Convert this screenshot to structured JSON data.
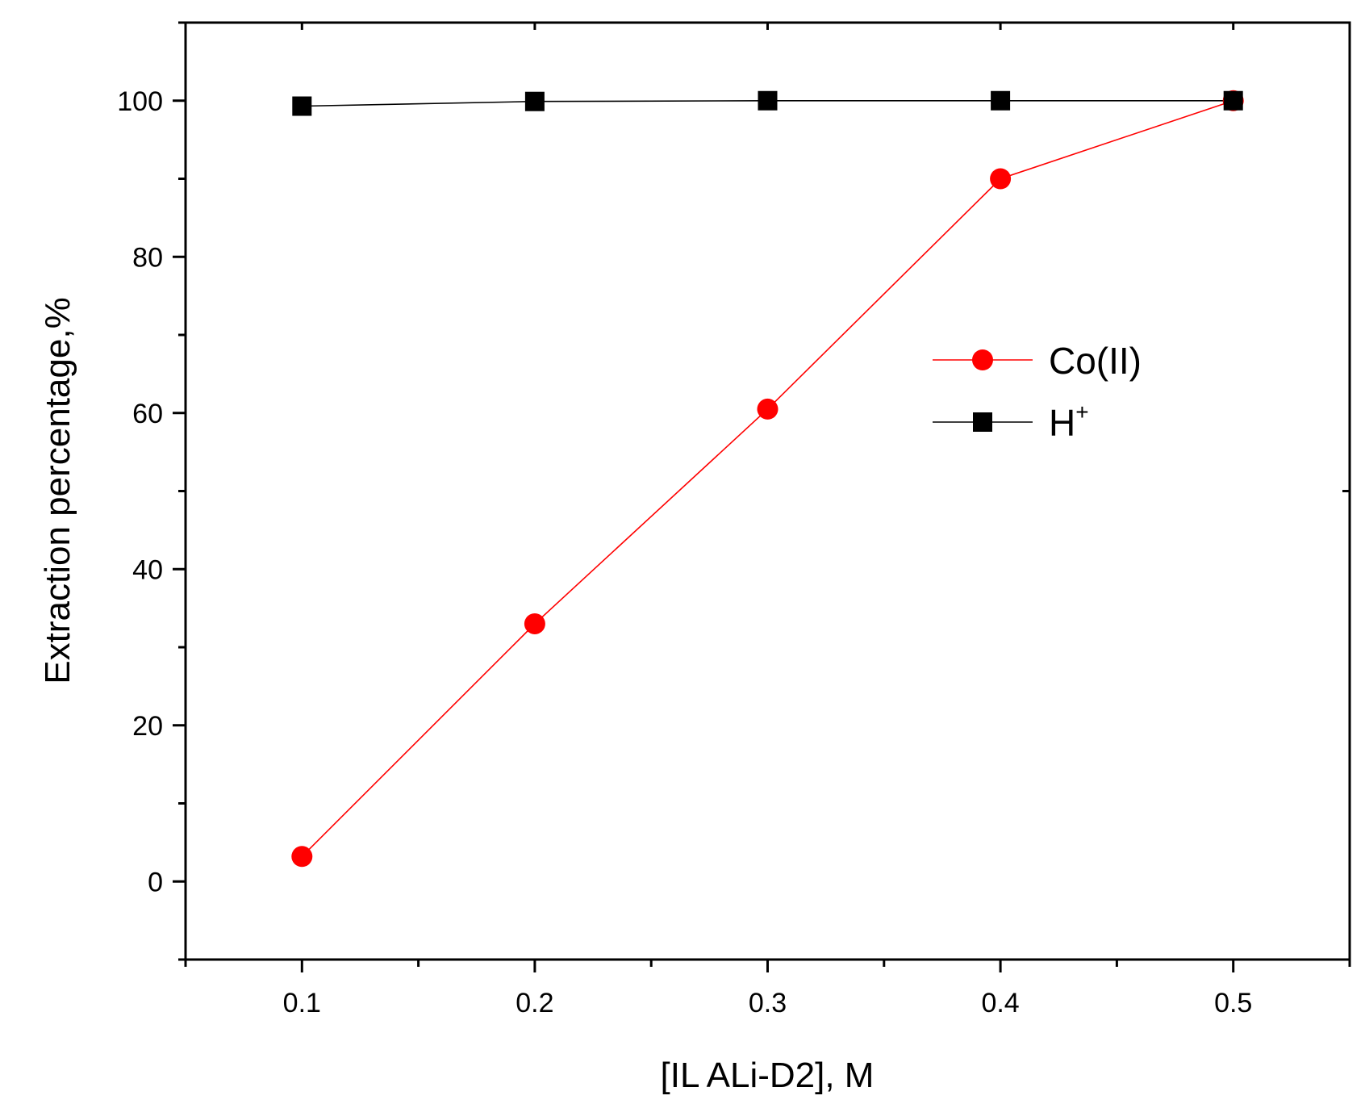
{
  "chart_data": {
    "type": "line",
    "title": "",
    "xlabel": "[IL ALi-D2], M",
    "ylabel": "Extraction percentage,%",
    "xlim": [
      0.05,
      0.55
    ],
    "ylim": [
      -10,
      110
    ],
    "x_ticks": [
      0.1,
      0.2,
      0.3,
      0.4,
      0.5
    ],
    "x_tick_labels": [
      "0.1",
      "0.2",
      "0.3",
      "0.4",
      "0.5"
    ],
    "y_ticks": [
      0,
      20,
      40,
      60,
      80,
      100
    ],
    "y_tick_labels": [
      "0",
      "20",
      "40",
      "60",
      "80",
      "100"
    ],
    "grid": false,
    "legend_position": "right",
    "x": [
      0.1,
      0.2,
      0.3,
      0.4,
      0.5
    ],
    "series": [
      {
        "name": "Co(II)",
        "legend_base": "Co(II)",
        "legend_sup": "",
        "marker": "circle",
        "color": "#ff0000",
        "values": [
          3.2,
          33.0,
          60.5,
          90.0,
          100.0
        ]
      },
      {
        "name": "H+",
        "legend_base": "H",
        "legend_sup": "+",
        "marker": "square",
        "color": "#000000",
        "values": [
          99.3,
          99.9,
          100.0,
          100.0,
          100.0
        ]
      }
    ]
  }
}
